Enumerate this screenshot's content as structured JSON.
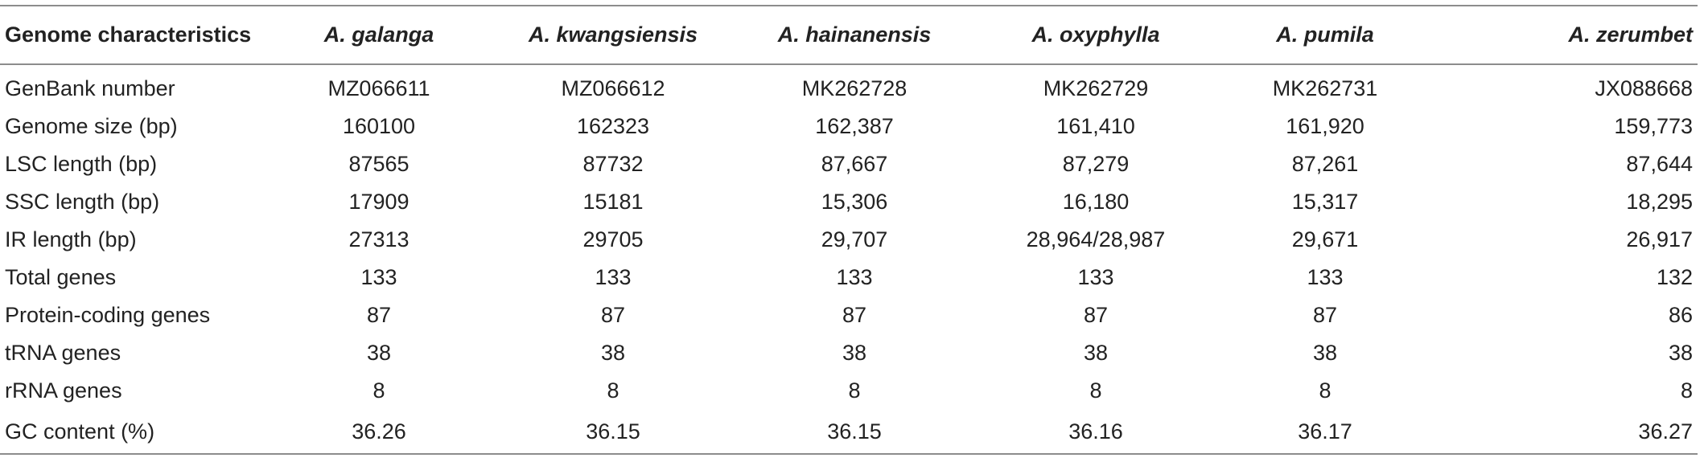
{
  "table": {
    "headers": [
      "Genome characteristics",
      "A. galanga",
      "A. kwangsiensis",
      "A. hainanensis",
      "A. oxyphylla",
      "A. pumila",
      "A. zerumbet"
    ],
    "rows": [
      [
        "GenBank number",
        "MZ066611",
        "MZ066612",
        "MK262728",
        "MK262729",
        "MK262731",
        "JX088668"
      ],
      [
        "Genome size (bp)",
        "160100",
        "162323",
        "162,387",
        "161,410",
        "161,920",
        "159,773"
      ],
      [
        "LSC length (bp)",
        "87565",
        "87732",
        "87,667",
        "87,279",
        "87,261",
        "87,644"
      ],
      [
        "SSC length (bp)",
        "17909",
        "15181",
        "15,306",
        "16,180",
        "15,317",
        "18,295"
      ],
      [
        "IR length (bp)",
        "27313",
        "29705",
        "29,707",
        "28,964/28,987",
        "29,671",
        "26,917"
      ],
      [
        "Total genes",
        "133",
        "133",
        "133",
        "133",
        "133",
        "132"
      ],
      [
        "Protein-coding genes",
        "87",
        "87",
        "87",
        "87",
        "87",
        "86"
      ],
      [
        "tRNA genes",
        "38",
        "38",
        "38",
        "38",
        "38",
        "38"
      ],
      [
        "rRNA genes",
        "8",
        "8",
        "8",
        "8",
        "8",
        "8"
      ],
      [
        "GC content (%)",
        "36.26",
        "36.15",
        "36.15",
        "36.16",
        "36.17",
        "36.27"
      ]
    ]
  }
}
